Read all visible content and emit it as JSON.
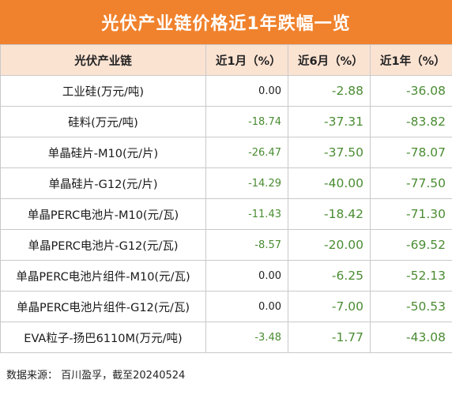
{
  "title": "光伏产业链价格近1年跌幅一览",
  "table": {
    "headers": [
      "光伏产业链",
      "近1月（%）",
      "近6月（%）",
      "近1年（%）"
    ],
    "rows": [
      {
        "name": "工业硅(万元/吨)",
        "m1": "0.00",
        "m6": "-2.88",
        "y1": "-36.08"
      },
      {
        "name": "硅料(万元/吨)",
        "m1": "-18.74",
        "m6": "-37.31",
        "y1": "-83.82"
      },
      {
        "name": "单晶硅片-M10(元/片)",
        "m1": "-26.47",
        "m6": "-37.50",
        "y1": "-78.07"
      },
      {
        "name": "单晶硅片-G12(元/片)",
        "m1": "-14.29",
        "m6": "-40.00",
        "y1": "-77.50"
      },
      {
        "name": "单晶PERC电池片-M10(元/瓦)",
        "m1": "-11.43",
        "m6": "-18.42",
        "y1": "-71.30"
      },
      {
        "name": "单晶PERC电池片-G12(元/瓦)",
        "m1": "-8.57",
        "m6": "-20.00",
        "y1": "-69.52"
      },
      {
        "name": "单晶PERC电池片组件-M10(元/瓦)",
        "m1": "0.00",
        "m6": "-6.25",
        "y1": "-52.13"
      },
      {
        "name": "单晶PERC电池片组件-G12(元/瓦)",
        "m1": "0.00",
        "m6": "-7.00",
        "y1": "-50.53"
      },
      {
        "name": "EVA粒子-扬巴6110M(万元/吨)",
        "m1": "-3.48",
        "m6": "-1.77",
        "y1": "-43.08"
      }
    ]
  },
  "source": "数据来源：  百川盈孚，截至20240524",
  "colors": {
    "title_bg": "#f0822d",
    "header_bg": "#fbe3d2",
    "negative_text": "#4a8c32",
    "zero_text": "#222222",
    "border": "#c9c9c9"
  }
}
